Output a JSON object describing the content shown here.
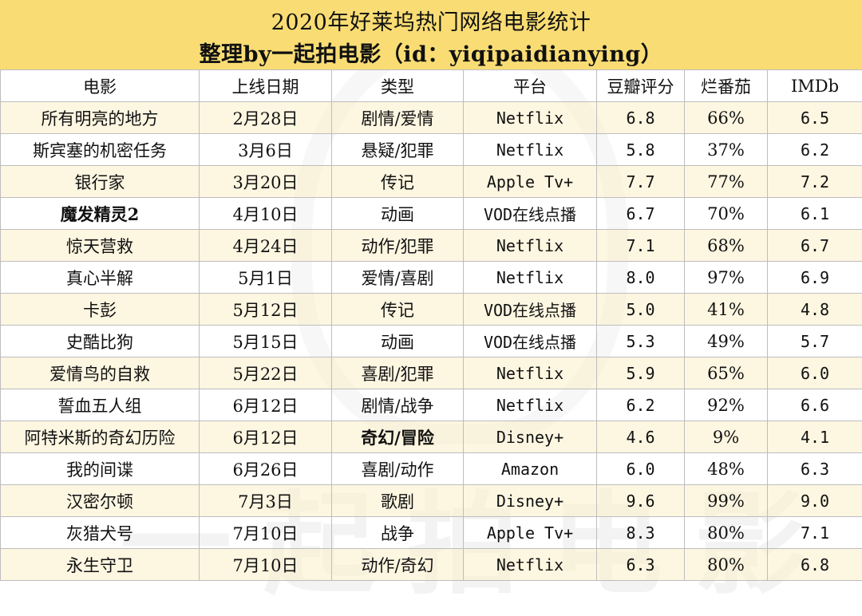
{
  "title": {
    "line1": "2020年好莱坞热门网络电影统计",
    "line2": "整理by一起拍电影（id：yiqipaidianying）"
  },
  "watermark": "一起拍电影",
  "columns": [
    "电影",
    "上线日期",
    "类型",
    "平台",
    "豆瓣评分",
    "烂番茄",
    "IMDb"
  ],
  "rows": [
    {
      "title": "所有明亮的地方",
      "date": "2月28日",
      "genre": "剧情/爱情",
      "platform": "Netflix",
      "douban": "6.8",
      "rt": "66%",
      "imdb": "6.5"
    },
    {
      "title": "斯宾塞的机密任务",
      "date": "3月6日",
      "genre": "悬疑/犯罪",
      "platform": "Netflix",
      "douban": "5.8",
      "rt": "37%",
      "imdb": "6.2"
    },
    {
      "title": "银行家",
      "date": "3月20日",
      "genre": "传记",
      "platform": "Apple Tv+",
      "douban": "7.7",
      "rt": "77%",
      "imdb": "7.2"
    },
    {
      "title": "魔发精灵2",
      "date": "4月10日",
      "genre": "动画",
      "platform": "VOD在线点播",
      "douban": "6.7",
      "rt": "70%",
      "imdb": "6.1"
    },
    {
      "title": "惊天营救",
      "date": "4月24日",
      "genre": "动作/犯罪",
      "platform": "Netflix",
      "douban": "7.1",
      "rt": "68%",
      "imdb": "6.7"
    },
    {
      "title": "真心半解",
      "date": "5月1日",
      "genre": "爱情/喜剧",
      "platform": "Netflix",
      "douban": "8.0",
      "rt": "97%",
      "imdb": "6.9"
    },
    {
      "title": "卡彭",
      "date": "5月12日",
      "genre": "传记",
      "platform": "VOD在线点播",
      "douban": "5.0",
      "rt": "41%",
      "imdb": "4.8"
    },
    {
      "title": "史酷比狗",
      "date": "5月15日",
      "genre": "动画",
      "platform": "VOD在线点播",
      "douban": "5.3",
      "rt": "49%",
      "imdb": "5.7"
    },
    {
      "title": "爱情鸟的自救",
      "date": "5月22日",
      "genre": "喜剧/犯罪",
      "platform": "Netflix",
      "douban": "5.9",
      "rt": "65%",
      "imdb": "6.0"
    },
    {
      "title": "誓血五人组",
      "date": "6月12日",
      "genre": "剧情/战争",
      "platform": "Netflix",
      "douban": "6.2",
      "rt": "92%",
      "imdb": "6.6"
    },
    {
      "title": "阿特米斯的奇幻历险",
      "date": "6月12日",
      "genre": "奇幻/冒险",
      "platform": "Disney+",
      "douban": "4.6",
      "rt": "9%",
      "imdb": "4.1"
    },
    {
      "title": "我的间谍",
      "date": "6月26日",
      "genre": "喜剧/动作",
      "platform": "Amazon",
      "douban": "6.0",
      "rt": "48%",
      "imdb": "6.3"
    },
    {
      "title": "汉密尔顿",
      "date": "7月3日",
      "genre": "歌剧",
      "platform": "Disney+",
      "douban": "9.6",
      "rt": "99%",
      "imdb": "9.0"
    },
    {
      "title": "灰猎犬号",
      "date": "7月10日",
      "genre": "战争",
      "platform": "Apple Tv+",
      "douban": "8.3",
      "rt": "80%",
      "imdb": "7.1"
    },
    {
      "title": "永生守卫",
      "date": "7月10日",
      "genre": "动作/奇幻",
      "platform": "Netflix",
      "douban": "6.3",
      "rt": "80%",
      "imdb": "6.8"
    }
  ],
  "colors": {
    "header_band": "#f9dd74",
    "alt_row": "#fceec8",
    "grid": "#bdbdbd"
  }
}
